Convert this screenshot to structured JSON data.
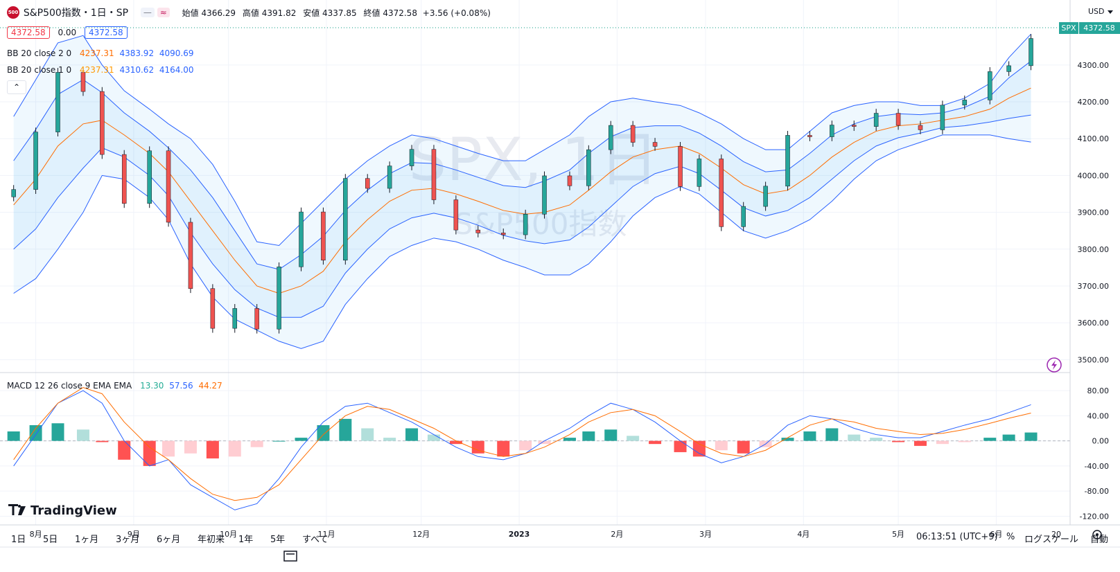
{
  "header": {
    "logo_text": "500",
    "symbol_title": "S&P500指数・1日・SP",
    "ohlc": {
      "open_label": "始値",
      "open": "4366.29",
      "high_label": "高値",
      "high": "4391.82",
      "low_label": "安値",
      "low": "4337.85",
      "close_label": "終値",
      "close": "4372.58",
      "change": "+3.56 (+0.08%)"
    },
    "sell_price": "4372.58",
    "spread": "0.00",
    "buy_price": "4372.58"
  },
  "indicators": {
    "bb2": {
      "label": "BB 20 close 2 0",
      "basis": "4237.31",
      "upper": "4383.92",
      "lower": "4090.69"
    },
    "bb1": {
      "label": "BB 20 close 1 0",
      "basis": "4237.31",
      "upper": "4310.62",
      "lower": "4164.00"
    },
    "macd": {
      "label": "MACD 12 26 close 9 EMA EMA",
      "hist": "13.30",
      "macd": "57.56",
      "signal": "44.27"
    }
  },
  "price_axis": {
    "currency": "USD",
    "ticks": [
      "4300.00",
      "4200.00",
      "4100.00",
      "4000.00",
      "3900.00",
      "3800.00",
      "3700.00",
      "3600.00",
      "3500.00"
    ],
    "last_symbol": "SPX",
    "last_price": "4372.58"
  },
  "macd_axis": {
    "ticks": [
      "80.00",
      "40.00",
      "0.00",
      "-40.00",
      "-80.00",
      "-120.00"
    ]
  },
  "time_axis": {
    "ticks": [
      "8月",
      "9月",
      "10月",
      "11月",
      "12月",
      "2023",
      "2月",
      "3月",
      "4月",
      "5月",
      "6月",
      "20"
    ]
  },
  "watermark": {
    "symbol": "SPX, 1日",
    "name": "S&P500指数"
  },
  "brand": "TradingView",
  "toolbar": {
    "ranges": [
      "1日",
      "5日",
      "1ヶ月",
      "3ヶ月",
      "6ヶ月",
      "年初来",
      "1年",
      "5年",
      "すべて"
    ],
    "time": "06:13:51 (UTC+9)",
    "percent": "%",
    "log": "ログスケール",
    "auto": "自動"
  },
  "colors": {
    "up": "#26a69a",
    "down": "#ef5350",
    "bb_band": "#2962ff",
    "basis": "#ff6d00",
    "macd": "#2962ff",
    "signal": "#ff6d00",
    "hist_up": "#26a69a",
    "hist_up_fade": "#b2dfdb",
    "hist_down": "#ff5252",
    "hist_down_fade": "#ffcdd2"
  },
  "chart_data": [
    {
      "type": "candlestick",
      "title": "S&P500指数・1日・SP",
      "ylim": [
        3480,
        4420
      ],
      "x": [
        "2022-07-25",
        "2022-08-01",
        "2022-08-08",
        "2022-08-16",
        "2022-08-22",
        "2022-08-29",
        "2022-09-06",
        "2022-09-12",
        "2022-09-19",
        "2022-09-26",
        "2022-10-03",
        "2022-10-10",
        "2022-10-17",
        "2022-10-24",
        "2022-10-31",
        "2022-11-07",
        "2022-11-14",
        "2022-11-21",
        "2022-11-28",
        "2022-12-05",
        "2022-12-12",
        "2022-12-19",
        "2022-12-27",
        "2023-01-03",
        "2023-01-09",
        "2023-01-17",
        "2023-01-23",
        "2023-01-30",
        "2023-02-06",
        "2023-02-13",
        "2023-02-21",
        "2023-02-27",
        "2023-03-06",
        "2023-03-13",
        "2023-03-20",
        "2023-03-27",
        "2023-04-03",
        "2023-04-10",
        "2023-04-17",
        "2023-04-24",
        "2023-05-01",
        "2023-05-08",
        "2023-05-15",
        "2023-05-22",
        "2023-05-30",
        "2023-06-05",
        "2023-06-12"
      ],
      "close": [
        3962,
        4118,
        4280,
        4228,
        4057,
        3924,
        4067,
        3873,
        3693,
        3585,
        3639,
        3583,
        3752,
        3901,
        3770,
        3992,
        3965,
        4026,
        4071,
        3934,
        3852,
        3844,
        3839,
        3895,
        3999,
        3972,
        4070,
        4136,
        4090,
        4079,
        3970,
        4045,
        3861,
        3916,
        3971,
        4109,
        4105,
        4137,
        4133,
        4169,
        4136,
        4124,
        4191,
        4205,
        4282,
        4298,
        4372
      ],
      "series": [
        {
          "name": "BB 20 close 2 0 basis",
          "values": [
            3920,
            3990,
            4080,
            4140,
            4150,
            4110,
            4060,
            4010,
            3930,
            3850,
            3770,
            3700,
            3680,
            3700,
            3740,
            3820,
            3880,
            3930,
            3960,
            3965,
            3950,
            3930,
            3905,
            3895,
            3900,
            3920,
            3960,
            4010,
            4050,
            4070,
            4080,
            4060,
            4020,
            3975,
            3950,
            3960,
            4000,
            4050,
            4090,
            4120,
            4135,
            4140,
            4150,
            4160,
            4180,
            4210,
            4237.31
          ]
        },
        {
          "name": "BB 20 close 2 0 upper",
          "values": [
            4160,
            4260,
            4360,
            4380,
            4300,
            4230,
            4180,
            4140,
            4100,
            4030,
            3930,
            3820,
            3810,
            3870,
            3930,
            3990,
            4040,
            4080,
            4110,
            4100,
            4080,
            4060,
            4040,
            4040,
            4070,
            4110,
            4160,
            4200,
            4210,
            4200,
            4190,
            4170,
            4140,
            4100,
            4070,
            4070,
            4120,
            4170,
            4190,
            4200,
            4200,
            4190,
            4190,
            4210,
            4250,
            4320,
            4383.92
          ]
        },
        {
          "name": "BB 20 close 2 0 lower",
          "values": [
            3680,
            3720,
            3800,
            3900,
            4000,
            3990,
            3940,
            3880,
            3760,
            3670,
            3610,
            3580,
            3550,
            3530,
            3550,
            3650,
            3720,
            3780,
            3810,
            3830,
            3820,
            3800,
            3770,
            3750,
            3730,
            3730,
            3760,
            3820,
            3890,
            3940,
            3970,
            3950,
            3900,
            3850,
            3830,
            3850,
            3880,
            3930,
            3990,
            4040,
            4070,
            4090,
            4110,
            4110,
            4110,
            4100,
            4090.69
          ]
        }
      ]
    },
    {
      "type": "bar",
      "title": "MACD 12 26 close 9 EMA EMA",
      "ylim": [
        -125,
        90
      ],
      "x": [
        "2022-07-25",
        "2022-08-01",
        "2022-08-08",
        "2022-08-16",
        "2022-08-22",
        "2022-08-29",
        "2022-09-06",
        "2022-09-12",
        "2022-09-19",
        "2022-09-26",
        "2022-10-03",
        "2022-10-10",
        "2022-10-17",
        "2022-10-24",
        "2022-10-31",
        "2022-11-07",
        "2022-11-14",
        "2022-11-21",
        "2022-11-28",
        "2022-12-05",
        "2022-12-12",
        "2022-12-19",
        "2022-12-27",
        "2023-01-03",
        "2023-01-09",
        "2023-01-17",
        "2023-01-23",
        "2023-01-30",
        "2023-02-06",
        "2023-02-13",
        "2023-02-21",
        "2023-02-27",
        "2023-03-06",
        "2023-03-13",
        "2023-03-20",
        "2023-03-27",
        "2023-04-03",
        "2023-04-10",
        "2023-04-17",
        "2023-04-24",
        "2023-05-01",
        "2023-05-08",
        "2023-05-15",
        "2023-05-22",
        "2023-05-30",
        "2023-06-05",
        "2023-06-12"
      ],
      "series": [
        {
          "name": "Histogram",
          "values": [
            15,
            25,
            28,
            18,
            -2,
            -30,
            -40,
            -25,
            -20,
            -28,
            -25,
            -10,
            0,
            5,
            25,
            35,
            20,
            5,
            20,
            10,
            -5,
            -20,
            -25,
            -15,
            -5,
            5,
            15,
            18,
            8,
            -5,
            -18,
            -25,
            -15,
            -20,
            -10,
            5,
            15,
            20,
            10,
            5,
            -2,
            -8,
            -5,
            -2,
            5,
            10,
            13.3
          ]
        },
        {
          "name": "MACD",
          "values": [
            -40,
            10,
            60,
            80,
            60,
            0,
            -40,
            -30,
            -70,
            -90,
            -110,
            -100,
            -60,
            -10,
            30,
            55,
            60,
            45,
            30,
            10,
            -10,
            -25,
            -30,
            -20,
            0,
            20,
            40,
            60,
            50,
            30,
            0,
            -20,
            -35,
            -25,
            -5,
            25,
            40,
            35,
            20,
            10,
            5,
            5,
            15,
            25,
            35,
            45,
            57.56
          ]
        },
        {
          "name": "Signal",
          "values": [
            -30,
            20,
            60,
            85,
            75,
            30,
            -10,
            -30,
            -60,
            -85,
            -95,
            -90,
            -70,
            -30,
            10,
            40,
            55,
            50,
            35,
            20,
            0,
            -15,
            -25,
            -20,
            -10,
            10,
            30,
            45,
            50,
            40,
            15,
            -5,
            -20,
            -25,
            -15,
            5,
            25,
            35,
            30,
            20,
            15,
            10,
            12,
            18,
            28,
            36,
            44.27
          ]
        }
      ]
    }
  ]
}
